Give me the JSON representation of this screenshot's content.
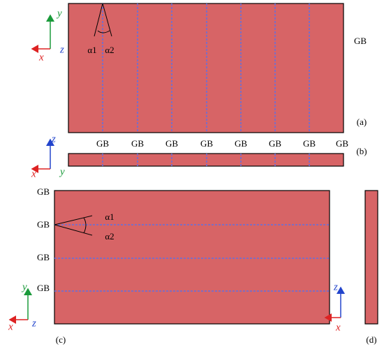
{
  "panels": [
    {
      "label": "(a)",
      "gb_labels": [
        "GB"
      ],
      "angles": [
        "α1",
        "α2"
      ],
      "axes": [
        "x",
        "y",
        "z"
      ]
    },
    {
      "label": "(b)",
      "gb_labels": [
        "GB",
        "GB",
        "GB",
        "GB",
        "GB",
        "GB",
        "GB",
        "GB"
      ],
      "axes": [
        "x",
        "z",
        "y"
      ]
    },
    {
      "label": "(c)",
      "gb_labels": [
        "GB",
        "GB",
        "GB",
        "GB"
      ],
      "angles": [
        "α1",
        "α2"
      ],
      "axes": [
        "x",
        "y",
        "z"
      ]
    },
    {
      "label": "(d)",
      "axes": [
        "x",
        "z"
      ]
    }
  ]
}
